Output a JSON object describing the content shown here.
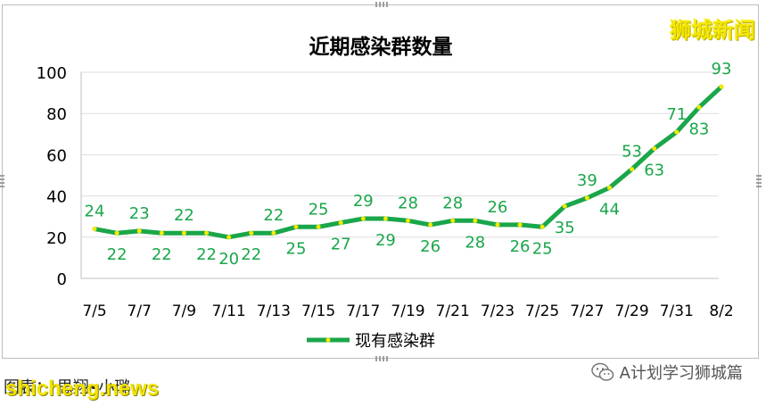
{
  "chart_data": {
    "type": "line",
    "title": "近期感染群数量",
    "ylim": [
      0,
      100
    ],
    "yticks": [
      0,
      20,
      40,
      60,
      80,
      100
    ],
    "x": [
      "7/5",
      "7/6",
      "7/7",
      "7/8",
      "7/9",
      "7/10",
      "7/11",
      "7/12",
      "7/13",
      "7/14",
      "7/15",
      "7/16",
      "7/17",
      "7/18",
      "7/19",
      "7/20",
      "7/21",
      "7/22",
      "7/23",
      "7/24",
      "7/25",
      "7/26",
      "7/27",
      "7/28",
      "7/29",
      "7/30",
      "7/31",
      "8/1",
      "8/2"
    ],
    "x_tick_labels": [
      "7/5",
      "7/7",
      "7/9",
      "7/11",
      "7/13",
      "7/15",
      "7/17",
      "7/19",
      "7/21",
      "7/23",
      "7/25",
      "7/27",
      "7/29",
      "7/31",
      "8/2"
    ],
    "series": [
      {
        "name": "现有感染群",
        "color": "#1aa64a",
        "marker_color": "#f5e900",
        "values": [
          24,
          22,
          23,
          22,
          22,
          22,
          20,
          22,
          22,
          25,
          25,
          27,
          29,
          29,
          28,
          26,
          28,
          28,
          26,
          26,
          25,
          35,
          39,
          44,
          53,
          63,
          71,
          83,
          93
        ]
      }
    ],
    "grid": true,
    "legend_position": "bottom",
    "label_color": "#1aa64a"
  },
  "watermark_top": "狮城新闻",
  "credit": "图表：  思翔•小璐",
  "site_watermark": "shicheng.news",
  "wechat_label": "A计划学习狮城篇"
}
